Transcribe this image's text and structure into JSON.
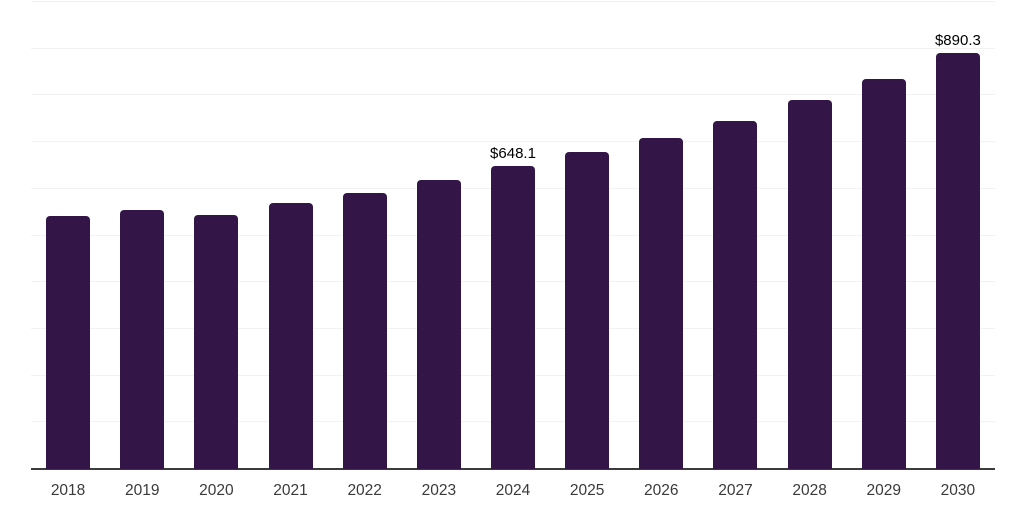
{
  "chart_data": {
    "type": "bar",
    "title": "",
    "xlabel": "",
    "ylabel": "",
    "categories": [
      "2018",
      "2019",
      "2020",
      "2021",
      "2022",
      "2023",
      "2024",
      "2025",
      "2026",
      "2027",
      "2028",
      "2029",
      "2030"
    ],
    "values": [
      541.7,
      554.6,
      543.9,
      569.6,
      591.6,
      619.4,
      648.1,
      679.2,
      707.9,
      744.9,
      789.8,
      836.2,
      890.3
    ],
    "point_labels": [
      "",
      "",
      "",
      "",
      "",
      "",
      "$648.1",
      "",
      "",
      "",
      "",
      "",
      "$890.3"
    ],
    "ylim": [
      0,
      1000
    ],
    "gridline_step": 100,
    "grid": "horizontal-only",
    "legend": "none",
    "colors": {
      "bar": "#341548",
      "gridline": "#f2f2f2",
      "axis_line": "#3b3b3b",
      "tick_label": "#3a3a3a",
      "data_label": "#000000",
      "background": "#ffffff"
    }
  }
}
